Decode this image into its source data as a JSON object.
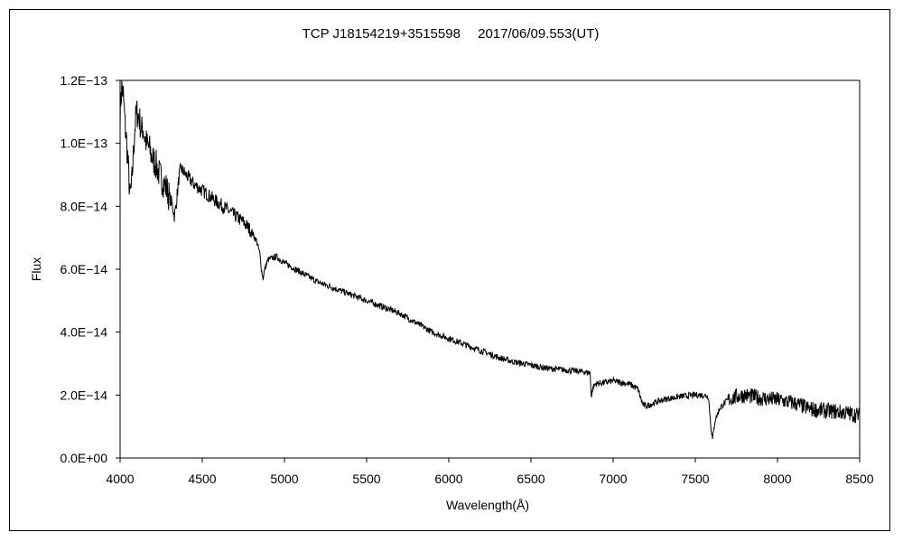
{
  "chart_data": {
    "type": "line",
    "title": "TCP J18154219+3515598　 2017/06/09.553(UT)",
    "xlabel": "Wavelength(Å)",
    "ylabel": "Flux",
    "xlim": [
      4000,
      8500
    ],
    "ylim": [
      0,
      1.2e-13
    ],
    "xticks": [
      4000,
      4500,
      5000,
      5500,
      6000,
      6500,
      7000,
      7500,
      8000,
      8500
    ],
    "xtick_labels": [
      "4000",
      "4500",
      "5000",
      "5500",
      "6000",
      "6500",
      "7000",
      "7500",
      "8000",
      "8500"
    ],
    "yticks": [
      0,
      2e-14,
      4e-14,
      6e-14,
      8e-14,
      1e-13,
      1.2e-13
    ],
    "ytick_labels": [
      "0.0E+00",
      "2.0E−14",
      "4.0E−14",
      "6.0E−14",
      "8.0E−14",
      "1.0E−13",
      "1.2E−13"
    ],
    "grid": false,
    "legend": "none",
    "line_color": "#000000",
    "series": [
      {
        "x": [
          4000,
          4010,
          4020,
          4030,
          4040,
          4050,
          4060,
          4070,
          4080,
          4090,
          4100,
          4110,
          4120,
          4130,
          4140,
          4150,
          4160,
          4170,
          4180,
          4190,
          4200,
          4220,
          4240,
          4260,
          4280,
          4300,
          4320,
          4330,
          4340,
          4350,
          4360,
          4370,
          4400,
          4450,
          4500,
          4550,
          4600,
          4650,
          4700,
          4750,
          4800,
          4830,
          4850,
          4860,
          4870,
          4880,
          4900,
          4950,
          5000,
          5100,
          5200,
          5300,
          5400,
          5500,
          5600,
          5700,
          5800,
          5900,
          6000,
          6100,
          6200,
          6300,
          6400,
          6500,
          6600,
          6700,
          6800,
          6860,
          6868,
          6875,
          6890,
          6950,
          7000,
          7050,
          7100,
          7150,
          7180,
          7200,
          7250,
          7300,
          7400,
          7500,
          7550,
          7580,
          7595,
          7605,
          7620,
          7650,
          7700,
          7750,
          7800,
          7900,
          8000,
          8100,
          8200,
          8300,
          8400,
          8450,
          8500
        ],
        "y": [
          1.1e-13,
          1.18e-13,
          1.15e-13,
          1.06e-13,
          1e-13,
          9.2e-14,
          8.3e-14,
          8.6e-14,
          9.6e-14,
          1.05e-13,
          1.1e-13,
          1.09e-13,
          1.07e-13,
          1.04e-13,
          1.05e-13,
          1.02e-13,
          1e-13,
          9.9e-14,
          9.8e-14,
          9.6e-14,
          9.5e-14,
          9.3e-14,
          9e-14,
          8.8e-14,
          8.6e-14,
          8.3e-14,
          8e-14,
          7.7e-14,
          8e-14,
          8.5e-14,
          9e-14,
          9.2e-14,
          9e-14,
          8.7e-14,
          8.5e-14,
          8.3e-14,
          8.1e-14,
          7.9e-14,
          7.7e-14,
          7.5e-14,
          7.2e-14,
          6.9e-14,
          6.5e-14,
          6e-14,
          5.7e-14,
          6e-14,
          6.3e-14,
          6.4e-14,
          6.2e-14,
          5.9e-14,
          5.6e-14,
          5.4e-14,
          5.2e-14,
          5e-14,
          4.8e-14,
          4.6e-14,
          4.3e-14,
          4e-14,
          3.8e-14,
          3.6e-14,
          3.4e-14,
          3.2e-14,
          3.05e-14,
          2.95e-14,
          2.85e-14,
          2.8e-14,
          2.75e-14,
          2.7e-14,
          1.9e-14,
          2.2e-14,
          2.35e-14,
          2.4e-14,
          2.45e-14,
          2.4e-14,
          2.35e-14,
          2.2e-14,
          1.7e-14,
          1.65e-14,
          1.75e-14,
          1.85e-14,
          1.95e-14,
          2e-14,
          2e-14,
          1.95e-14,
          1e-14,
          6e-15,
          1.2e-14,
          1.6e-14,
          1.85e-14,
          1.95e-14,
          2e-14,
          1.9e-14,
          1.85e-14,
          1.75e-14,
          1.55e-14,
          1.5e-14,
          1.45e-14,
          1.4e-14,
          1.35e-14
        ]
      }
    ]
  }
}
